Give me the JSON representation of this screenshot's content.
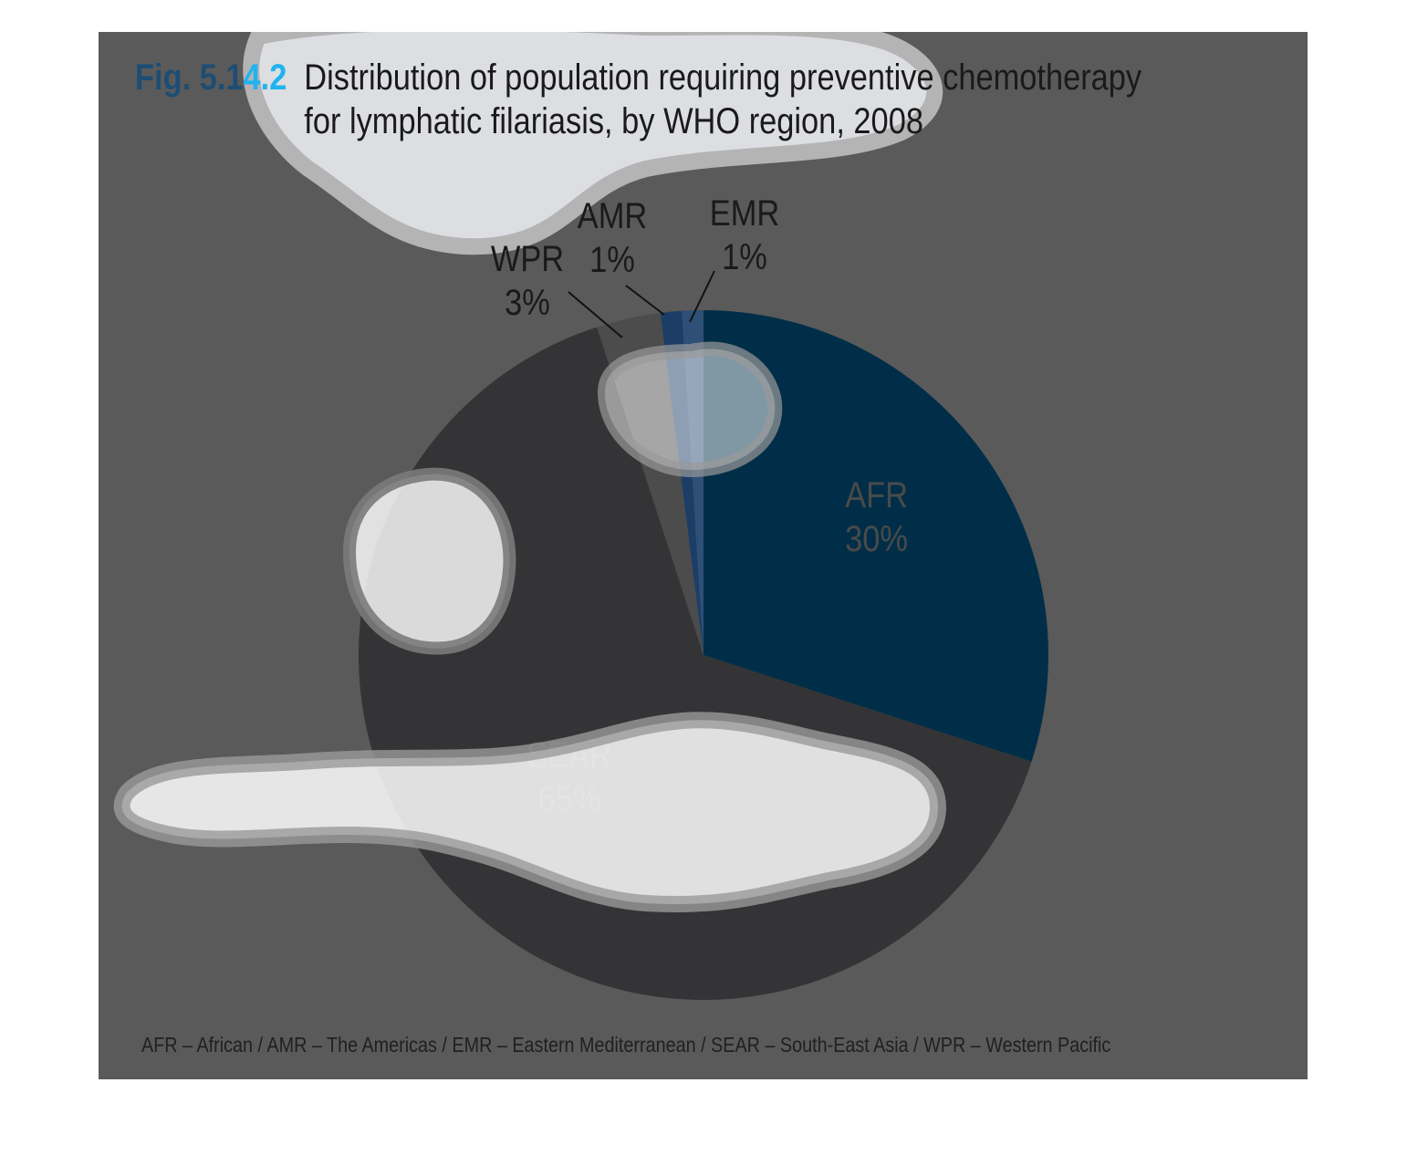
{
  "title": {
    "fig_number": "Fig. 5.1",
    "fig_number_highlight": "4.2",
    "line1": "Distribution of population requiring preventive chemotherapy",
    "line2": "for lymphatic filariasis, by WHO region, 2008"
  },
  "chart_data": {
    "type": "pie",
    "start_angle_deg": 0,
    "direction": "clockwise",
    "slices": [
      {
        "name": "AFR",
        "value": 30,
        "label": "30%",
        "color": "#002e48"
      },
      {
        "name": "SEAR",
        "value": 65,
        "label": "65%",
        "color": "#343436"
      },
      {
        "name": "WPR",
        "value": 3,
        "label": "3%",
        "color": "#4c4c4c"
      },
      {
        "name": "AMR",
        "value": 1,
        "label": "1%",
        "color": "#1c3e66"
      },
      {
        "name": "EMR",
        "value": 1,
        "label": "1%",
        "color": "#2e4f76"
      }
    ]
  },
  "footnote": "AFR – African / AMR – The Americas / EMR – Eastern Mediterranean / SEAR – South-East Asia / WPR – Western Pacific",
  "colors": {
    "background": "#5a5a5a",
    "blob_fill": "#dcdee2",
    "blob_rim": "#b8b8b8"
  }
}
